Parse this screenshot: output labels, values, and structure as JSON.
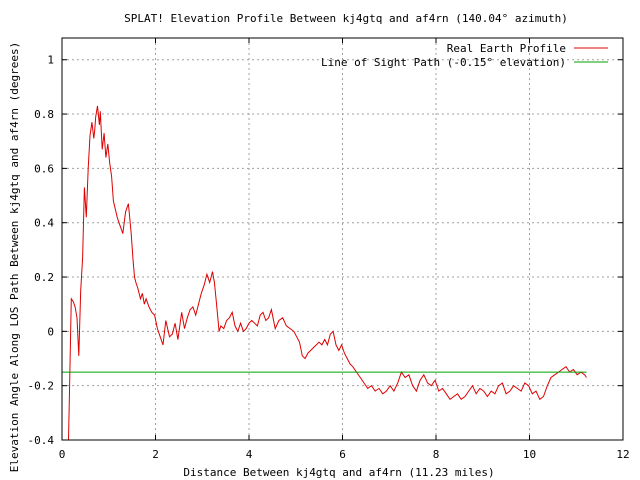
{
  "chart_data": {
    "type": "line",
    "title": "SPLAT! Elevation Profile Between kj4gtq and af4rn (140.04° azimuth)",
    "xlabel": "Distance Between kj4gtq and af4rn (11.23 miles)",
    "ylabel": "Elevation Angle Along LOS Path Between kj4gtq and af4rn (degrees)",
    "xlim": [
      0,
      12
    ],
    "ylim": [
      -0.4,
      1.08
    ],
    "xticks": [
      0,
      2,
      4,
      6,
      8,
      10,
      12
    ],
    "yticks": [
      -0.4,
      -0.2,
      0,
      0.2,
      0.4,
      0.6,
      0.8,
      1
    ],
    "xtick_labels": [
      "0",
      "2",
      "4",
      "6",
      "8",
      "10",
      "12"
    ],
    "ytick_labels": [
      "-0.4",
      "-0.2",
      "0",
      "0.2",
      "0.4",
      "0.6",
      "0.8",
      "1"
    ],
    "grid": true,
    "legend_position": "top-right",
    "series": [
      {
        "name": "Real Earth Profile",
        "color": "#dd0000",
        "x": [
          0.14,
          0.16,
          0.18,
          0.2,
          0.24,
          0.28,
          0.32,
          0.36,
          0.4,
          0.44,
          0.48,
          0.52,
          0.56,
          0.6,
          0.64,
          0.68,
          0.7,
          0.72,
          0.76,
          0.8,
          0.82,
          0.86,
          0.9,
          0.94,
          0.98,
          1.02,
          1.06,
          1.1,
          1.14,
          1.18,
          1.22,
          1.26,
          1.3,
          1.36,
          1.42,
          1.48,
          1.52,
          1.55,
          1.58,
          1.62,
          1.68,
          1.72,
          1.76,
          1.8,
          1.86,
          1.92,
          1.98,
          2.04,
          2.1,
          2.16,
          2.22,
          2.3,
          2.36,
          2.42,
          2.48,
          2.56,
          2.62,
          2.68,
          2.74,
          2.8,
          2.86,
          2.92,
          2.98,
          3.04,
          3.1,
          3.16,
          3.22,
          3.26,
          3.3,
          3.36,
          3.4,
          3.46,
          3.52,
          3.58,
          3.64,
          3.7,
          3.76,
          3.82,
          3.88,
          3.94,
          4.0,
          4.06,
          4.12,
          4.18,
          4.24,
          4.3,
          4.36,
          4.42,
          4.48,
          4.56,
          4.64,
          4.72,
          4.8,
          4.88,
          4.96,
          5.02,
          5.08,
          5.14,
          5.2,
          5.26,
          5.32,
          5.38,
          5.44,
          5.5,
          5.56,
          5.62,
          5.68,
          5.74,
          5.8,
          5.86,
          5.92,
          5.98,
          6.04,
          6.1,
          6.16,
          6.22,
          6.3,
          6.38,
          6.46,
          6.54,
          6.62,
          6.7,
          6.78,
          6.86,
          6.94,
          7.02,
          7.1,
          7.18,
          7.26,
          7.34,
          7.42,
          7.5,
          7.58,
          7.66,
          7.74,
          7.82,
          7.9,
          7.98,
          8.06,
          8.14,
          8.22,
          8.3,
          8.38,
          8.46,
          8.54,
          8.62,
          8.7,
          8.78,
          8.86,
          8.94,
          9.02,
          9.1,
          9.18,
          9.26,
          9.34,
          9.42,
          9.5,
          9.58,
          9.66,
          9.74,
          9.82,
          9.9,
          9.98,
          10.06,
          10.14,
          10.22,
          10.3,
          10.38,
          10.46,
          10.54,
          10.62,
          10.7,
          10.78,
          10.86,
          10.94,
          11.02,
          11.1,
          11.18,
          11.22
        ],
        "y": [
          -0.4,
          -0.22,
          -0.05,
          0.12,
          0.11,
          0.09,
          0.05,
          -0.09,
          0.15,
          0.27,
          0.53,
          0.42,
          0.6,
          0.72,
          0.77,
          0.71,
          0.74,
          0.79,
          0.83,
          0.76,
          0.81,
          0.67,
          0.73,
          0.64,
          0.69,
          0.62,
          0.57,
          0.48,
          0.45,
          0.42,
          0.4,
          0.38,
          0.36,
          0.44,
          0.47,
          0.36,
          0.26,
          0.2,
          0.18,
          0.16,
          0.12,
          0.14,
          0.1,
          0.12,
          0.09,
          0.07,
          0.06,
          0.01,
          -0.02,
          -0.05,
          0.04,
          -0.02,
          -0.01,
          0.03,
          -0.03,
          0.07,
          0.01,
          0.05,
          0.08,
          0.09,
          0.06,
          0.1,
          0.14,
          0.17,
          0.21,
          0.18,
          0.22,
          0.18,
          0.11,
          0.0,
          0.02,
          0.01,
          0.04,
          0.05,
          0.07,
          0.02,
          0.0,
          0.03,
          0.0,
          0.01,
          0.03,
          0.04,
          0.03,
          0.02,
          0.06,
          0.07,
          0.04,
          0.05,
          0.08,
          0.01,
          0.04,
          0.05,
          0.02,
          0.01,
          0.0,
          -0.02,
          -0.04,
          -0.09,
          -0.1,
          -0.08,
          -0.07,
          -0.06,
          -0.05,
          -0.04,
          -0.05,
          -0.03,
          -0.05,
          -0.01,
          0.0,
          -0.05,
          -0.07,
          -0.05,
          -0.08,
          -0.1,
          -0.12,
          -0.13,
          -0.15,
          -0.17,
          -0.19,
          -0.21,
          -0.2,
          -0.22,
          -0.21,
          -0.23,
          -0.22,
          -0.2,
          -0.22,
          -0.19,
          -0.15,
          -0.17,
          -0.16,
          -0.2,
          -0.22,
          -0.18,
          -0.16,
          -0.19,
          -0.2,
          -0.18,
          -0.22,
          -0.21,
          -0.23,
          -0.25,
          -0.24,
          -0.23,
          -0.25,
          -0.24,
          -0.22,
          -0.2,
          -0.23,
          -0.21,
          -0.22,
          -0.24,
          -0.22,
          -0.23,
          -0.2,
          -0.19,
          -0.23,
          -0.22,
          -0.2,
          -0.21,
          -0.22,
          -0.19,
          -0.2,
          -0.23,
          -0.22,
          -0.25,
          -0.24,
          -0.2,
          -0.17,
          -0.16,
          -0.15,
          -0.14,
          -0.13,
          -0.15,
          -0.14,
          -0.16,
          -0.15,
          -0.16,
          -0.17
        ]
      },
      {
        "name": "Line of Sight Path (-0.15° elevation)",
        "color": "#00a000",
        "x": [
          0,
          11.22
        ],
        "y": [
          -0.15,
          -0.15
        ]
      }
    ]
  }
}
